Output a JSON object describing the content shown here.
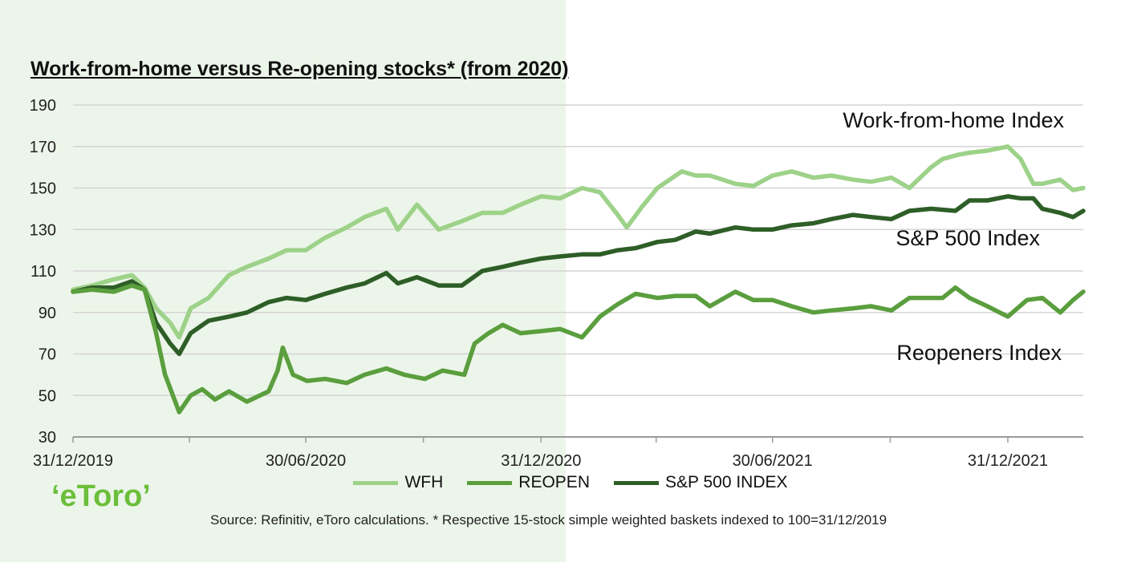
{
  "title": "Work-from-home versus Re-opening stocks* (from 2020)",
  "logo_text": "‘eToro’",
  "source": "Source: Refinitiv, eToro calculations. * Respective 15-stock simple weighted baskets indexed to 100=31/12/2019",
  "colors": {
    "wfh": "#9dd289",
    "reopen": "#5a9e3e",
    "sp500": "#2e5e27",
    "shade": "#ecf5e9",
    "logo": "#6bbf3a"
  },
  "legend": [
    {
      "label": "WFH",
      "color": "#9dd289"
    },
    {
      "label": "REOPEN",
      "color": "#5a9e3e"
    },
    {
      "label": "S&P 500 INDEX",
      "color": "#2e5e27"
    }
  ],
  "chart_data": {
    "type": "line",
    "title": "Work-from-home versus Re-opening stocks* (from 2020)",
    "xlabel": "",
    "ylabel": "",
    "ylim": [
      30,
      190
    ],
    "yticks": [
      30,
      50,
      70,
      90,
      110,
      130,
      150,
      170,
      190
    ],
    "xticks": [
      "31/12/2019",
      "30/06/2020",
      "31/12/2020",
      "30/06/2021",
      "31/12/2021"
    ],
    "xrange": [
      "2019-12-31",
      "2022-02-28"
    ],
    "grid": "horizontal",
    "shaded_region": [
      "2019-12-31",
      "2021-01-10"
    ],
    "legend_position": "bottom",
    "annotations": [
      {
        "text": "Work-from-home Index",
        "near_series": "WFH"
      },
      {
        "text": "S&P 500 Index",
        "near_series": "S&P 500 INDEX"
      },
      {
        "text": "Reopeners Index",
        "near_series": "REOPEN"
      }
    ],
    "series": [
      {
        "name": "WFH",
        "color": "#9dd289",
        "x": [
          "2019-12-31",
          "2020-01-15",
          "2020-02-01",
          "2020-02-15",
          "2020-02-25",
          "2020-03-05",
          "2020-03-16",
          "2020-03-23",
          "2020-04-01",
          "2020-04-15",
          "2020-05-01",
          "2020-05-15",
          "2020-06-01",
          "2020-06-15",
          "2020-06-30",
          "2020-07-15",
          "2020-08-01",
          "2020-08-15",
          "2020-09-01",
          "2020-09-10",
          "2020-09-25",
          "2020-10-12",
          "2020-10-30",
          "2020-11-15",
          "2020-12-01",
          "2020-12-15",
          "2020-12-31",
          "2021-01-15",
          "2021-02-01",
          "2021-02-15",
          "2021-03-01",
          "2021-03-08",
          "2021-03-20",
          "2021-04-01",
          "2021-04-20",
          "2021-05-01",
          "2021-05-12",
          "2021-06-01",
          "2021-06-15",
          "2021-06-30",
          "2021-07-15",
          "2021-08-01",
          "2021-08-15",
          "2021-09-01",
          "2021-09-15",
          "2021-10-01",
          "2021-10-15",
          "2021-11-01",
          "2021-11-10",
          "2021-11-22",
          "2021-12-01",
          "2021-12-15",
          "2021-12-31",
          "2022-01-10",
          "2022-01-20",
          "2022-01-27",
          "2022-02-10",
          "2022-02-20",
          "2022-02-28"
        ],
        "y": [
          101,
          103,
          106,
          108,
          102,
          92,
          85,
          78,
          92,
          97,
          108,
          112,
          116,
          120,
          120,
          126,
          131,
          136,
          140,
          130,
          142,
          130,
          134,
          138,
          138,
          142,
          146,
          145,
          150,
          148,
          137,
          131,
          141,
          150,
          158,
          156,
          156,
          152,
          151,
          156,
          158,
          155,
          156,
          154,
          153,
          155,
          150,
          160,
          164,
          166,
          167,
          168,
          170,
          164,
          152,
          152,
          154,
          149,
          150
        ]
      },
      {
        "name": "REOPEN",
        "color": "#5a9e3e",
        "x": [
          "2019-12-31",
          "2020-01-15",
          "2020-02-01",
          "2020-02-15",
          "2020-02-25",
          "2020-03-05",
          "2020-03-12",
          "2020-03-23",
          "2020-04-01",
          "2020-04-10",
          "2020-04-20",
          "2020-05-01",
          "2020-05-15",
          "2020-06-01",
          "2020-06-08",
          "2020-06-12",
          "2020-06-20",
          "2020-07-01",
          "2020-07-15",
          "2020-08-01",
          "2020-08-15",
          "2020-09-01",
          "2020-09-15",
          "2020-10-01",
          "2020-10-15",
          "2020-11-01",
          "2020-11-09",
          "2020-11-20",
          "2020-12-01",
          "2020-12-15",
          "2020-12-31",
          "2021-01-15",
          "2021-02-01",
          "2021-02-15",
          "2021-03-01",
          "2021-03-15",
          "2021-04-01",
          "2021-04-15",
          "2021-05-01",
          "2021-05-12",
          "2021-06-01",
          "2021-06-15",
          "2021-06-30",
          "2021-07-15",
          "2021-08-01",
          "2021-08-15",
          "2021-09-01",
          "2021-09-15",
          "2021-10-01",
          "2021-10-15",
          "2021-11-01",
          "2021-11-10",
          "2021-11-20",
          "2021-12-01",
          "2021-12-15",
          "2021-12-31",
          "2022-01-15",
          "2022-01-27",
          "2022-02-10",
          "2022-02-20",
          "2022-02-28"
        ],
        "y": [
          100,
          101,
          100,
          103,
          101,
          80,
          60,
          42,
          50,
          53,
          48,
          52,
          47,
          52,
          62,
          73,
          60,
          57,
          58,
          56,
          60,
          63,
          60,
          58,
          62,
          60,
          75,
          80,
          84,
          80,
          81,
          82,
          78,
          88,
          94,
          99,
          97,
          98,
          98,
          93,
          100,
          96,
          96,
          93,
          90,
          91,
          92,
          93,
          91,
          97,
          97,
          97,
          102,
          97,
          93,
          88,
          96,
          97,
          90,
          96,
          100
        ]
      },
      {
        "name": "S&P 500 INDEX",
        "color": "#2e5e27",
        "x": [
          "2019-12-31",
          "2020-01-15",
          "2020-02-01",
          "2020-02-15",
          "2020-02-25",
          "2020-03-05",
          "2020-03-16",
          "2020-03-23",
          "2020-04-01",
          "2020-04-15",
          "2020-05-01",
          "2020-05-15",
          "2020-06-01",
          "2020-06-15",
          "2020-06-30",
          "2020-07-15",
          "2020-08-01",
          "2020-08-15",
          "2020-09-01",
          "2020-09-10",
          "2020-09-25",
          "2020-10-12",
          "2020-10-30",
          "2020-11-15",
          "2020-12-01",
          "2020-12-15",
          "2020-12-31",
          "2021-01-15",
          "2021-02-01",
          "2021-02-15",
          "2021-03-01",
          "2021-03-15",
          "2021-04-01",
          "2021-04-15",
          "2021-05-01",
          "2021-05-12",
          "2021-06-01",
          "2021-06-15",
          "2021-06-30",
          "2021-07-15",
          "2021-08-01",
          "2021-08-15",
          "2021-09-01",
          "2021-09-15",
          "2021-10-01",
          "2021-10-15",
          "2021-11-01",
          "2021-11-20",
          "2021-12-01",
          "2021-12-15",
          "2021-12-31",
          "2022-01-10",
          "2022-01-20",
          "2022-01-27",
          "2022-02-10",
          "2022-02-20",
          "2022-02-28"
        ],
        "y": [
          100,
          102,
          102,
          105,
          101,
          85,
          75,
          70,
          80,
          86,
          88,
          90,
          95,
          97,
          96,
          99,
          102,
          104,
          109,
          104,
          107,
          103,
          103,
          110,
          112,
          114,
          116,
          117,
          118,
          118,
          120,
          121,
          124,
          125,
          129,
          128,
          131,
          130,
          130,
          132,
          133,
          135,
          137,
          136,
          135,
          139,
          140,
          139,
          144,
          144,
          146,
          145,
          145,
          140,
          138,
          136,
          139
        ]
      }
    ]
  }
}
